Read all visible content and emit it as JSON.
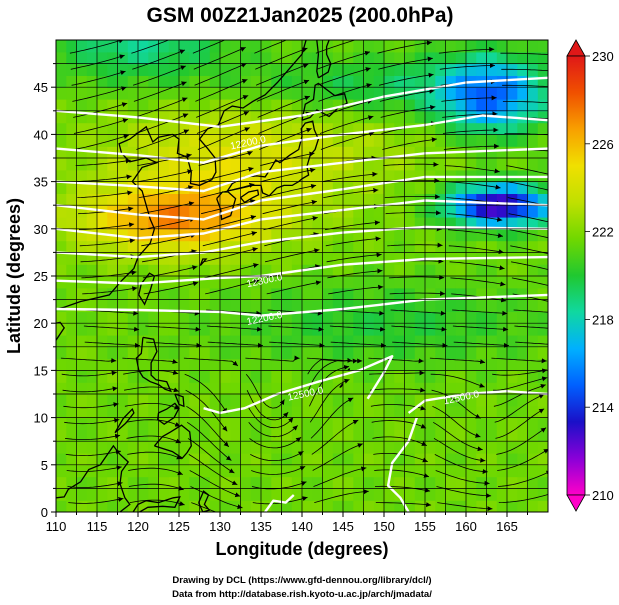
{
  "chart_data": {
    "type": "heatmap",
    "title": "GSM 00Z21Jan2025 (200.0hPa)",
    "xlabel": "Longitude (degrees)",
    "ylabel": "Latitude (degrees)",
    "xlim": [
      110,
      170
    ],
    "ylim": [
      0,
      50
    ],
    "xticks": [
      "110",
      "115",
      "120",
      "125",
      "130",
      "135",
      "140",
      "145",
      "150",
      "155",
      "160",
      "165"
    ],
    "yticks": [
      "0",
      "5",
      "10",
      "15",
      "20",
      "25",
      "30",
      "35",
      "40",
      "45"
    ],
    "colorbar": {
      "min": 210,
      "max": 230,
      "ticks": [
        "210",
        "214",
        "218",
        "222",
        "226",
        "230"
      ],
      "colors": [
        "#ff00c8",
        "#8a00d8",
        "#1a10c8",
        "#0060ff",
        "#00b0ff",
        "#10d8a0",
        "#20c830",
        "#70d800",
        "#c0e000",
        "#f0e000",
        "#f8a000",
        "#f05000",
        "#e01818"
      ]
    },
    "contour_labels": [
      {
        "text": "12500.0",
        "lon": 140.5,
        "lat": 12.2
      },
      {
        "text": "12500.0",
        "lon": 159.5,
        "lat": 11.8
      },
      {
        "text": "12300.0",
        "lon": 135.5,
        "lat": 24.2
      },
      {
        "text": "12200.0",
        "lon": 135.5,
        "lat": 20.2
      },
      {
        "text": "12200.0",
        "lon": 133.5,
        "lat": 38.8
      }
    ],
    "credits": [
      "Drawing by DCL (https://www.gfd-dennou.org/library/dcl/)",
      "Data from http://database.rish.kyoto-u.ac.jp/arch/jmadata/"
    ]
  }
}
